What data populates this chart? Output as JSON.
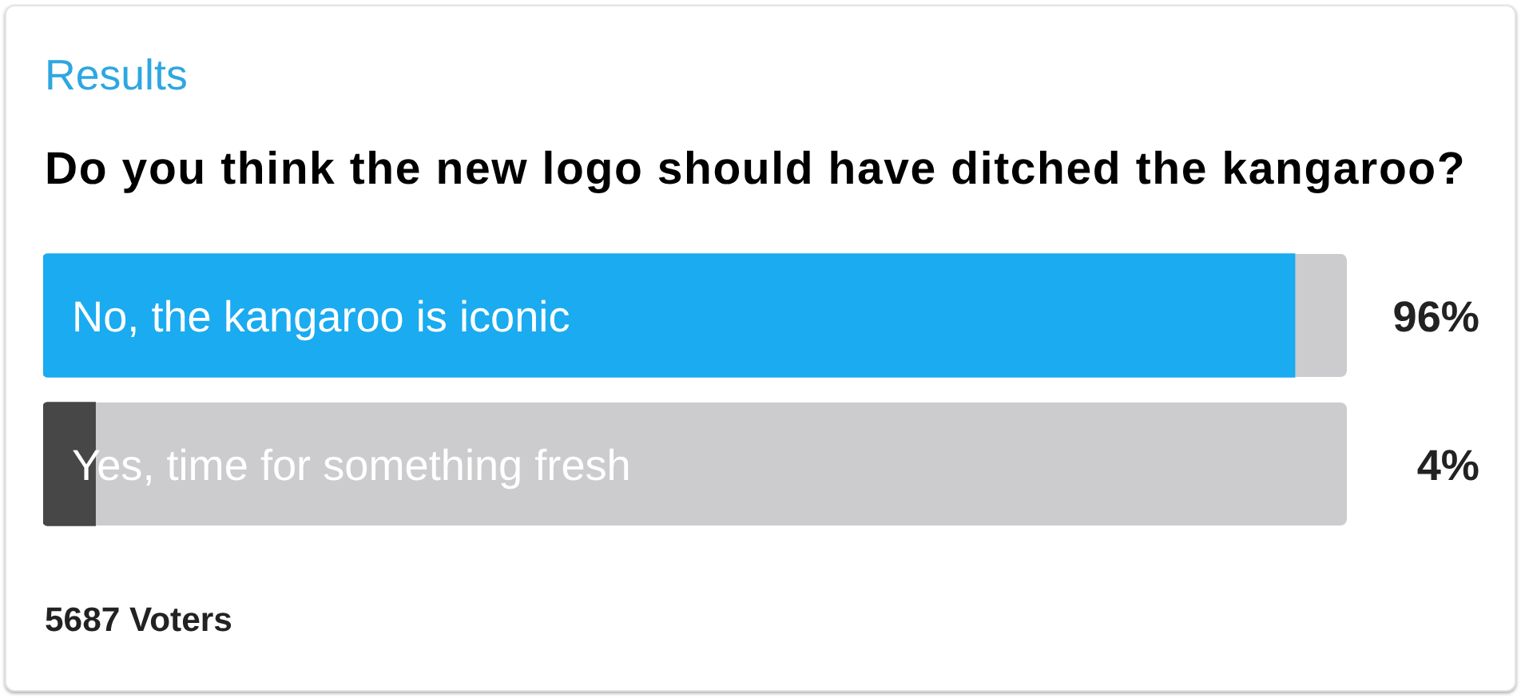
{
  "chart_data": {
    "type": "bar",
    "orientation": "horizontal",
    "subtitle": "Results",
    "title": "Do you think the new logo should have ditched the kangaroo?",
    "categories": [
      "No, the kangaroo is iconic",
      "Yes, time for something fresh"
    ],
    "values": [
      96,
      4
    ],
    "colors": [
      "#1aabf0",
      "#474747"
    ],
    "value_labels": [
      "96%",
      "4%"
    ],
    "xlim": [
      0,
      100
    ],
    "tick_labels": "y",
    "annotations": [
      "5687 Voters"
    ]
  }
}
